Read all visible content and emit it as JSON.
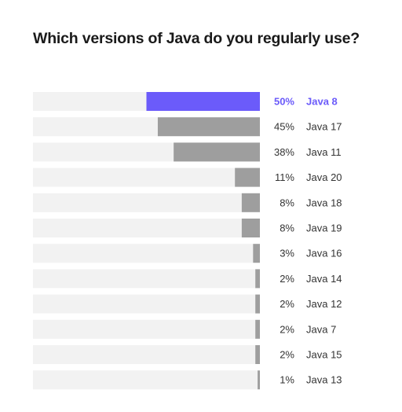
{
  "chart_data": {
    "type": "bar",
    "orientation": "horizontal",
    "title": "Which versions of Java do you regularly use?",
    "categories": [
      "Java 8",
      "Java 17",
      "Java 11",
      "Java 20",
      "Java 18",
      "Java 19",
      "Java 16",
      "Java 14",
      "Java 12",
      "Java 7",
      "Java 15",
      "Java 13"
    ],
    "values": [
      50,
      45,
      38,
      11,
      8,
      8,
      3,
      2,
      2,
      2,
      2,
      1
    ],
    "value_labels": [
      "50%",
      "45%",
      "38%",
      "11%",
      "8%",
      "8%",
      "3%",
      "2%",
      "2%",
      "2%",
      "2%",
      "1%"
    ],
    "xlim": [
      0,
      100
    ],
    "unit": "%",
    "highlight_index": 0,
    "grid": false,
    "colors": {
      "highlight": "#6b5bfa",
      "bar": "#9e9e9e",
      "track": "#f2f2f2",
      "text": "#333333"
    }
  }
}
